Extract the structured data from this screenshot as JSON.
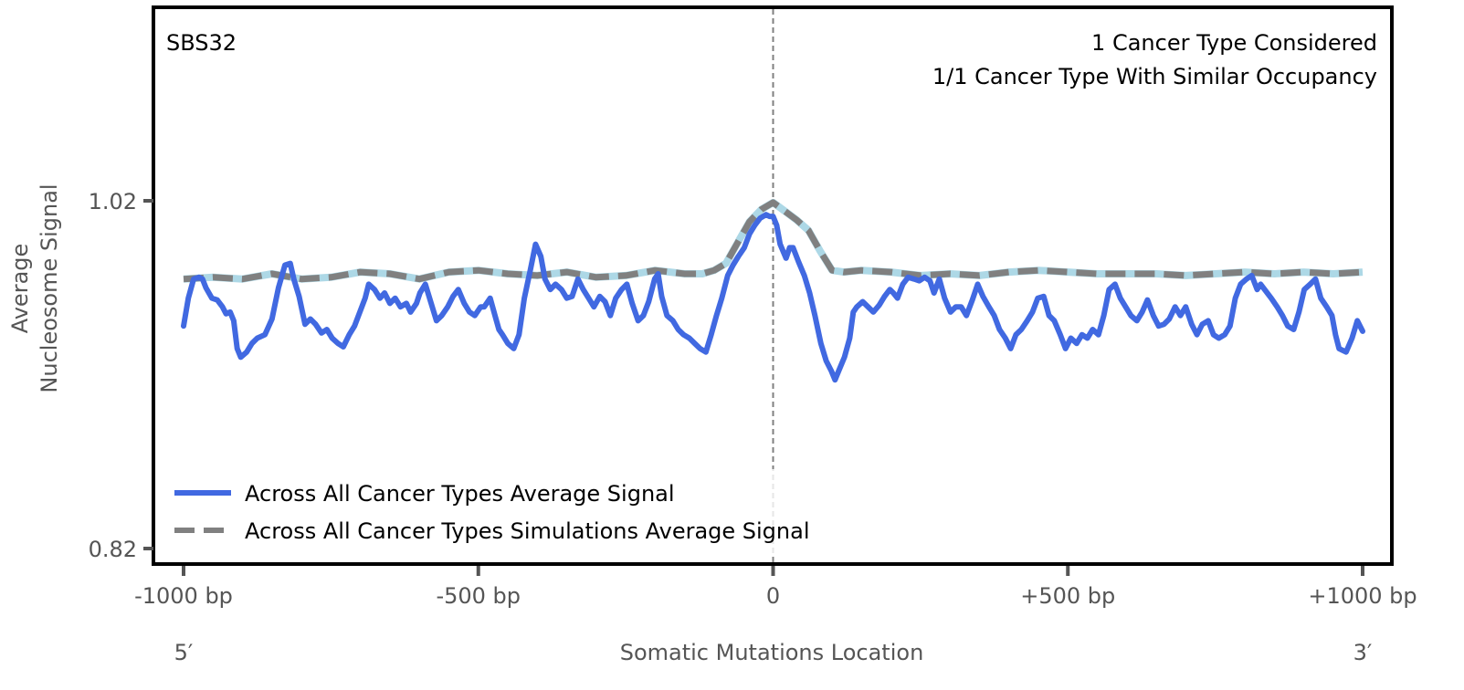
{
  "chart_data": {
    "type": "line",
    "title": "",
    "signature_label": "SBS32",
    "annotations": [
      "1 Cancer Type Considered",
      "1/1 Cancer Type With Similar Occupancy"
    ],
    "xlabel": "Somatic Mutations Location",
    "ylabel_lines": [
      "Average",
      "Nucleosome Signal"
    ],
    "xlim": [
      -1000,
      1000
    ],
    "ylim": [
      0.811,
      1.131
    ],
    "x_ticks": [
      {
        "value": -1000,
        "label": "-1000 bp"
      },
      {
        "value": -500,
        "label": "-500 bp"
      },
      {
        "value": 0,
        "label": "0"
      },
      {
        "value": 500,
        "label": "+500 bp"
      },
      {
        "value": 1000,
        "label": "+1000 bp"
      }
    ],
    "y_ticks": [
      {
        "value": 1.02,
        "label": "1.02"
      },
      {
        "value": 0.82,
        "label": "0.82"
      }
    ],
    "strand_labels": {
      "left": "5′",
      "right": "3′"
    },
    "reference_line": {
      "x": 0,
      "style": "dashed",
      "color": "#808080"
    },
    "grid": false,
    "legend_position": "bottom-left",
    "series": [
      {
        "name": "Across All Cancer Types Average Signal",
        "style": "solid",
        "color": "#4169e1",
        "x": [
          -1000,
          -992,
          -983,
          -974,
          -968,
          -962,
          -952,
          -943,
          -934,
          -928,
          -921,
          -915,
          -909,
          -903,
          -893,
          -884,
          -875,
          -862,
          -850,
          -839,
          -828,
          -819,
          -813,
          -804,
          -794,
          -785,
          -776,
          -766,
          -757,
          -748,
          -738,
          -729,
          -719,
          -710,
          -701,
          -692,
          -686,
          -676,
          -667,
          -659,
          -650,
          -641,
          -632,
          -622,
          -615,
          -605,
          -599,
          -590,
          -580,
          -571,
          -562,
          -552,
          -543,
          -534,
          -524,
          -515,
          -506,
          -496,
          -490,
          -480,
          -471,
          -465,
          -459,
          -450,
          -440,
          -431,
          -422,
          -412,
          -403,
          -394,
          -387,
          -378,
          -369,
          -359,
          -350,
          -341,
          -331,
          -322,
          -313,
          -304,
          -294,
          -285,
          -276,
          -267,
          -257,
          -248,
          -239,
          -229,
          -220,
          -211,
          -201,
          -195,
          -189,
          -180,
          -170,
          -161,
          -152,
          -142,
          -133,
          -124,
          -114,
          -105,
          -96,
          -87,
          -77,
          -68,
          -59,
          -49,
          -40,
          -31,
          -22,
          -12,
          -6,
          0,
          6,
          12,
          22,
          28,
          34,
          43,
          53,
          62,
          71,
          81,
          90,
          99,
          105,
          111,
          121,
          130,
          136,
          142,
          152,
          161,
          170,
          180,
          189,
          198,
          204,
          211,
          220,
          229,
          239,
          248,
          257,
          266,
          273,
          282,
          291,
          301,
          310,
          319,
          328,
          338,
          347,
          356,
          366,
          375,
          384,
          394,
          403,
          412,
          421,
          431,
          440,
          449,
          459,
          468,
          477,
          487,
          496,
          505,
          515,
          524,
          533,
          542,
          552,
          561,
          570,
          580,
          589,
          598,
          607,
          617,
          626,
          635,
          645,
          654,
          663,
          672,
          682,
          691,
          700,
          710,
          719,
          728,
          738,
          747,
          756,
          766,
          775,
          784,
          793,
          803,
          812,
          821,
          827,
          836,
          845,
          855,
          864,
          873,
          883,
          892,
          901,
          911,
          920,
          929,
          939,
          948,
          954,
          960,
          972,
          982,
          991,
          1000
        ],
        "y": [
          0.948,
          0.964,
          0.975,
          0.976,
          0.975,
          0.97,
          0.964,
          0.963,
          0.959,
          0.955,
          0.956,
          0.951,
          0.935,
          0.93,
          0.933,
          0.938,
          0.941,
          0.943,
          0.952,
          0.97,
          0.983,
          0.984,
          0.975,
          0.965,
          0.949,
          0.952,
          0.949,
          0.944,
          0.946,
          0.941,
          0.938,
          0.936,
          0.943,
          0.948,
          0.956,
          0.964,
          0.972,
          0.969,
          0.964,
          0.967,
          0.961,
          0.964,
          0.959,
          0.961,
          0.956,
          0.961,
          0.967,
          0.972,
          0.961,
          0.951,
          0.954,
          0.959,
          0.965,
          0.969,
          0.961,
          0.956,
          0.954,
          0.959,
          0.959,
          0.964,
          0.953,
          0.946,
          0.943,
          0.938,
          0.935,
          0.943,
          0.964,
          0.98,
          0.995,
          0.988,
          0.975,
          0.969,
          0.972,
          0.969,
          0.964,
          0.965,
          0.975,
          0.969,
          0.964,
          0.959,
          0.965,
          0.962,
          0.954,
          0.964,
          0.969,
          0.972,
          0.961,
          0.951,
          0.954,
          0.962,
          0.975,
          0.978,
          0.965,
          0.954,
          0.951,
          0.946,
          0.943,
          0.941,
          0.938,
          0.935,
          0.933,
          0.943,
          0.954,
          0.964,
          0.977,
          0.983,
          0.988,
          0.993,
          1.001,
          1.006,
          1.01,
          1.012,
          1.011,
          1.011,
          1.006,
          0.995,
          0.987,
          0.993,
          0.993,
          0.985,
          0.977,
          0.967,
          0.954,
          0.938,
          0.928,
          0.922,
          0.917,
          0.922,
          0.93,
          0.941,
          0.956,
          0.959,
          0.962,
          0.959,
          0.956,
          0.96,
          0.965,
          0.969,
          0.967,
          0.964,
          0.972,
          0.976,
          0.975,
          0.974,
          0.976,
          0.974,
          0.967,
          0.975,
          0.964,
          0.956,
          0.959,
          0.959,
          0.954,
          0.963,
          0.972,
          0.965,
          0.959,
          0.954,
          0.946,
          0.941,
          0.935,
          0.943,
          0.946,
          0.951,
          0.956,
          0.964,
          0.965,
          0.954,
          0.951,
          0.943,
          0.935,
          0.941,
          0.938,
          0.943,
          0.941,
          0.946,
          0.943,
          0.954,
          0.969,
          0.972,
          0.964,
          0.959,
          0.954,
          0.951,
          0.956,
          0.963,
          0.954,
          0.948,
          0.949,
          0.952,
          0.959,
          0.954,
          0.959,
          0.949,
          0.943,
          0.949,
          0.951,
          0.943,
          0.941,
          0.943,
          0.948,
          0.964,
          0.972,
          0.975,
          0.977,
          0.969,
          0.972,
          0.968,
          0.964,
          0.959,
          0.954,
          0.948,
          0.946,
          0.956,
          0.969,
          0.972,
          0.975,
          0.964,
          0.959,
          0.954,
          0.943,
          0.935,
          0.933,
          0.941,
          0.951,
          0.945
        ]
      },
      {
        "name": "Across All Cancer Types Simulations Average Signal",
        "style": "dashed",
        "color": "#808080",
        "underlay_color": "#add8e6",
        "x": [
          -1000,
          -950,
          -900,
          -850,
          -800,
          -750,
          -700,
          -650,
          -600,
          -550,
          -500,
          -450,
          -400,
          -350,
          -300,
          -250,
          -200,
          -150,
          -120,
          -100,
          -80,
          -60,
          -40,
          -20,
          0,
          20,
          40,
          60,
          80,
          100,
          120,
          150,
          200,
          250,
          300,
          350,
          400,
          450,
          500,
          550,
          600,
          650,
          700,
          750,
          800,
          850,
          900,
          950,
          1000
        ],
        "y": [
          0.975,
          0.976,
          0.975,
          0.978,
          0.975,
          0.976,
          0.979,
          0.978,
          0.975,
          0.979,
          0.98,
          0.978,
          0.977,
          0.979,
          0.976,
          0.977,
          0.98,
          0.978,
          0.978,
          0.98,
          0.984,
          0.996,
          1.008,
          1.015,
          1.019,
          1.014,
          1.009,
          1.003,
          0.991,
          0.98,
          0.979,
          0.98,
          0.979,
          0.977,
          0.978,
          0.977,
          0.979,
          0.98,
          0.979,
          0.978,
          0.978,
          0.978,
          0.977,
          0.978,
          0.979,
          0.978,
          0.979,
          0.978,
          0.979
        ]
      }
    ]
  }
}
